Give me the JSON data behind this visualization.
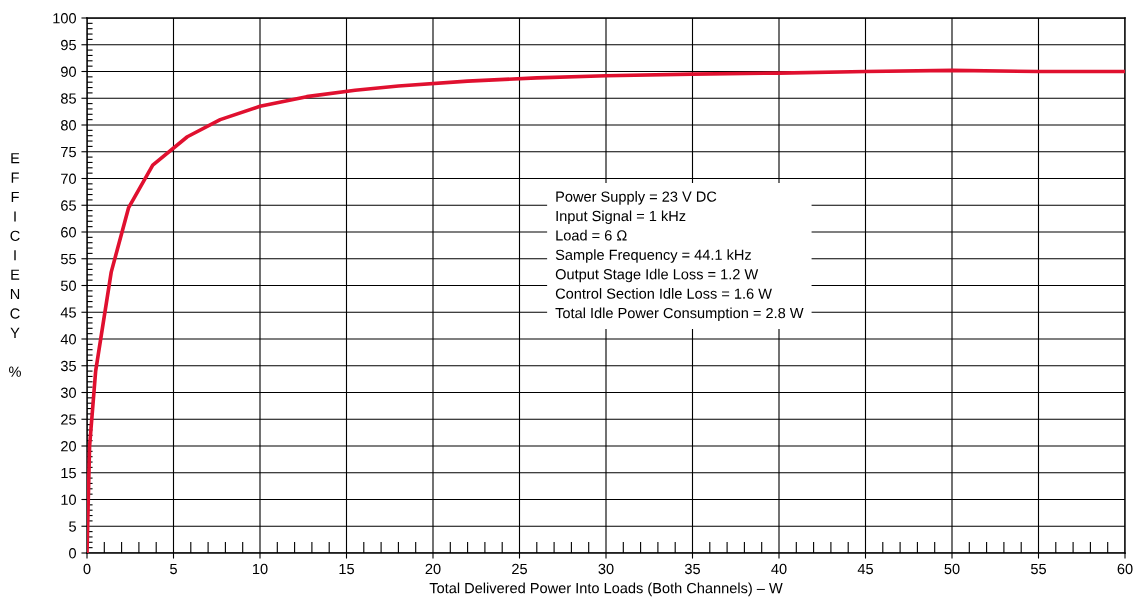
{
  "chart_data": {
    "type": "line",
    "xlabel": "Total Delivered Power Into Loads (Both Channels) – W",
    "ylabel": "EFFICIENCY %",
    "x": [
      0,
      0.15,
      0.5,
      1.4,
      2.4,
      3.8,
      5.8,
      7.7,
      10,
      12.7,
      15.5,
      18,
      22,
      26,
      30,
      35,
      40,
      45,
      50,
      55,
      60
    ],
    "series": [
      {
        "color": "#e0102f",
        "values": [
          0,
          20,
          34,
          52.5,
          64.5,
          72.5,
          77.8,
          81,
          83.5,
          85.3,
          86.5,
          87.3,
          88.2,
          88.8,
          89.2,
          89.5,
          89.7,
          90,
          90.2,
          90,
          90
        ]
      }
    ],
    "xlim": [
      0,
      60
    ],
    "xticks": [
      0,
      5,
      10,
      15,
      20,
      25,
      30,
      35,
      40,
      45,
      50,
      55,
      60
    ],
    "ylim": [
      0,
      100
    ],
    "yticks": [
      0,
      5,
      10,
      15,
      20,
      25,
      30,
      35,
      40,
      45,
      50,
      55,
      60,
      65,
      70,
      75,
      80,
      85,
      90,
      95,
      100
    ],
    "grid": true,
    "legend": false,
    "marker": "none",
    "line_style": "solid",
    "annotations": [
      "Power Supply = 23 V DC",
      "Input Signal = 1 kHz",
      "Load = 6 Ω",
      "Sample Frequency = 44.1 kHz",
      "Output Stage Idle Loss = 1.2 W",
      "Control Section Idle Loss = 1.6 W",
      "Total Idle Power Consumption = 2.8 W"
    ]
  }
}
